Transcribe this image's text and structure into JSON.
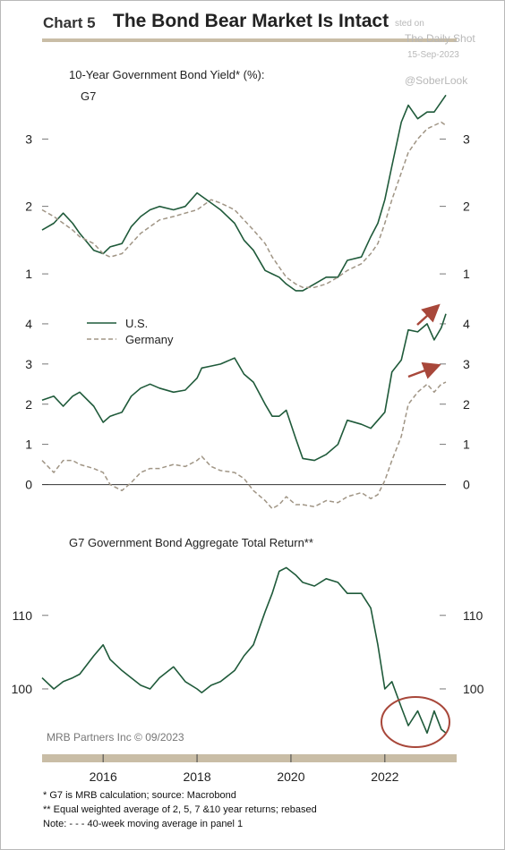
{
  "header": {
    "chart_number": "Chart 5",
    "title": "The Bond Bear Market Is Intact"
  },
  "watermark": {
    "posted": "sted on",
    "site": "The Daily Shot",
    "date": "15-Sep-2023",
    "handle": "@SoberLook"
  },
  "source_credit": "MRB Partners Inc © 09/2023",
  "footnotes": [
    "*  G7 is MRB calculation; source: Macrobond",
    "** Equal weighted average of 2, 5, 7 &10 year returns; rebased",
    "Note: - - -  40-week moving average in panel 1"
  ],
  "colors": {
    "us": "#1f5a3a",
    "ma_germany": "#a09585",
    "annotation": "#a8473a",
    "rule": "#c9bda6"
  },
  "chart_data": [
    {
      "type": "line",
      "title": "10-Year Government Bond Yield* (%):",
      "subtitle": "G7",
      "x": [
        2014.7,
        2014.95,
        2015.15,
        2015.35,
        2015.5,
        2015.8,
        2016.0,
        2016.15,
        2016.4,
        2016.6,
        2016.8,
        2017.0,
        2017.2,
        2017.5,
        2017.75,
        2018.0,
        2018.1,
        2018.3,
        2018.5,
        2018.8,
        2019.0,
        2019.2,
        2019.45,
        2019.6,
        2019.75,
        2019.9,
        2020.1,
        2020.25,
        2020.5,
        2020.75,
        2021.0,
        2021.2,
        2021.5,
        2021.7,
        2021.85,
        2022.0,
        2022.15,
        2022.35,
        2022.5,
        2022.7,
        2022.9,
        2023.05,
        2023.2,
        2023.3
      ],
      "series": [
        {
          "name": "",
          "values": [
            1.65,
            1.75,
            1.9,
            1.75,
            1.6,
            1.35,
            1.3,
            1.4,
            1.45,
            1.7,
            1.85,
            1.95,
            2.0,
            1.95,
            2.0,
            2.2,
            2.15,
            2.05,
            1.95,
            1.75,
            1.5,
            1.35,
            1.05,
            1.0,
            0.95,
            0.85,
            0.75,
            0.75,
            0.85,
            0.95,
            0.95,
            1.2,
            1.25,
            1.55,
            1.75,
            2.1,
            2.6,
            3.25,
            3.5,
            3.3,
            3.4,
            3.4,
            3.55,
            3.65
          ]
        },
        {
          "name": "",
          "style": "dashed",
          "values": [
            1.95,
            1.85,
            1.75,
            1.65,
            1.55,
            1.45,
            1.3,
            1.25,
            1.3,
            1.45,
            1.6,
            1.7,
            1.8,
            1.85,
            1.9,
            1.95,
            2.0,
            2.1,
            2.05,
            1.95,
            1.8,
            1.65,
            1.45,
            1.25,
            1.1,
            0.95,
            0.85,
            0.8,
            0.8,
            0.85,
            0.95,
            1.05,
            1.15,
            1.3,
            1.45,
            1.75,
            2.1,
            2.5,
            2.8,
            3.0,
            3.15,
            3.2,
            3.25,
            3.2
          ]
        }
      ],
      "xlim": [
        2014.7,
        2023.3
      ],
      "ylim": [
        0.55,
        3.8
      ],
      "yticks": [
        1,
        2,
        3
      ]
    },
    {
      "type": "line",
      "legend": [
        "U.S.",
        "Germany"
      ],
      "x": [
        2014.7,
        2014.95,
        2015.15,
        2015.35,
        2015.5,
        2015.8,
        2016.0,
        2016.15,
        2016.4,
        2016.6,
        2016.8,
        2017.0,
        2017.2,
        2017.5,
        2017.75,
        2018.0,
        2018.1,
        2018.3,
        2018.5,
        2018.8,
        2019.0,
        2019.2,
        2019.45,
        2019.6,
        2019.75,
        2019.9,
        2020.1,
        2020.25,
        2020.5,
        2020.75,
        2021.0,
        2021.2,
        2021.5,
        2021.7,
        2021.85,
        2022.0,
        2022.15,
        2022.35,
        2022.5,
        2022.7,
        2022.9,
        2023.05,
        2023.2,
        2023.3
      ],
      "series": [
        {
          "name": "U.S.",
          "values": [
            2.1,
            2.2,
            1.95,
            2.2,
            2.3,
            1.95,
            1.55,
            1.7,
            1.8,
            2.2,
            2.4,
            2.5,
            2.4,
            2.3,
            2.35,
            2.65,
            2.9,
            2.95,
            3.0,
            3.15,
            2.75,
            2.55,
            2.0,
            1.7,
            1.7,
            1.85,
            1.15,
            0.65,
            0.6,
            0.75,
            1.0,
            1.6,
            1.5,
            1.4,
            1.6,
            1.8,
            2.8,
            3.1,
            3.85,
            3.8,
            4.0,
            3.6,
            3.9,
            4.25
          ]
        },
        {
          "name": "Germany",
          "values": [
            0.6,
            0.3,
            0.6,
            0.6,
            0.5,
            0.4,
            0.3,
            0.0,
            -0.15,
            0.05,
            0.3,
            0.4,
            0.4,
            0.5,
            0.45,
            0.6,
            0.7,
            0.45,
            0.35,
            0.3,
            0.15,
            -0.15,
            -0.4,
            -0.6,
            -0.5,
            -0.3,
            -0.5,
            -0.5,
            -0.55,
            -0.4,
            -0.45,
            -0.3,
            -0.2,
            -0.35,
            -0.25,
            0.1,
            0.6,
            1.2,
            2.0,
            2.3,
            2.5,
            2.3,
            2.5,
            2.55
          ]
        }
      ],
      "xlim": [
        2014.7,
        2023.3
      ],
      "ylim": [
        -0.9,
        4.6
      ],
      "yticks": [
        0,
        1,
        2,
        3,
        4
      ]
    },
    {
      "type": "line",
      "title": "G7 Government Bond Aggregate Total Return**",
      "x": [
        2014.7,
        2014.95,
        2015.15,
        2015.35,
        2015.5,
        2015.8,
        2016.0,
        2016.15,
        2016.4,
        2016.6,
        2016.8,
        2017.0,
        2017.2,
        2017.5,
        2017.75,
        2018.0,
        2018.1,
        2018.3,
        2018.5,
        2018.8,
        2019.0,
        2019.2,
        2019.45,
        2019.6,
        2019.75,
        2019.9,
        2020.1,
        2020.25,
        2020.5,
        2020.75,
        2021.0,
        2021.2,
        2021.5,
        2021.7,
        2021.85,
        2022.0,
        2022.15,
        2022.35,
        2022.5,
        2022.7,
        2022.9,
        2023.05,
        2023.2,
        2023.3
      ],
      "series": [
        {
          "name": "",
          "values": [
            101.5,
            100.0,
            101.0,
            101.5,
            102.0,
            104.5,
            106.0,
            104.0,
            102.5,
            101.5,
            100.5,
            100.0,
            101.5,
            103.0,
            101.0,
            100.0,
            99.5,
            100.5,
            101.0,
            102.5,
            104.5,
            106.0,
            110.5,
            113.0,
            116.0,
            116.5,
            115.5,
            114.5,
            114.0,
            115.0,
            114.5,
            113.0,
            113.0,
            111.0,
            106.0,
            100.0,
            101.0,
            97.5,
            95.0,
            97.0,
            94.0,
            97.0,
            94.5,
            94.0
          ]
        }
      ],
      "xlim": [
        2014.7,
        2023.3
      ],
      "ylim": [
        90.5,
        118.5
      ],
      "yticks": [
        100,
        110
      ]
    }
  ],
  "x_axis": {
    "tick_labels": [
      "2016",
      "2018",
      "2020",
      "2022"
    ],
    "tick_values": [
      2016,
      2018,
      2020,
      2022
    ]
  }
}
